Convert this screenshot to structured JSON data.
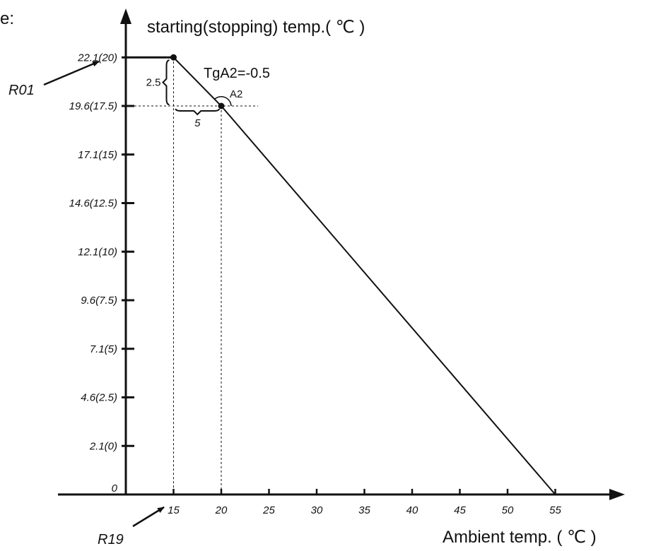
{
  "corner_text": "e:",
  "chart_data": {
    "type": "line",
    "ylabel": "starting(stopping) temp.( ℃ )",
    "xlabel": "Ambient temp. ( ℃ )",
    "x_ticks": [
      15,
      20,
      25,
      30,
      35,
      40,
      45,
      50,
      55
    ],
    "y_ticks": [
      {
        "value": 0,
        "label": "0"
      },
      {
        "value": 2.5,
        "label": "2.1(0)"
      },
      {
        "value": 5,
        "label": "4.6(2.5)"
      },
      {
        "value": 7.5,
        "label": "7.1(5)"
      },
      {
        "value": 10,
        "label": "9.6(7.5)"
      },
      {
        "value": 12.5,
        "label": "12.1(10)"
      },
      {
        "value": 15,
        "label": "14.6(12.5)"
      },
      {
        "value": 17.5,
        "label": "17.1(15)"
      },
      {
        "value": 20,
        "label": "19.6(17.5)"
      },
      {
        "value": 22.5,
        "label": "22.1(20)"
      }
    ],
    "xlim": [
      8.5,
      56
    ],
    "ylim": [
      0,
      23.5
    ],
    "series": [
      {
        "x": [
          15,
          20,
          55
        ],
        "y": [
          22.5,
          20,
          0
        ]
      }
    ],
    "points": [
      {
        "x": 15,
        "y": 22.5
      },
      {
        "x": 20,
        "y": 20
      }
    ],
    "annotations": {
      "slope": "TgA2=-0.5",
      "angle": "A2",
      "dy": "2.5",
      "dx": "5"
    },
    "markers": {
      "top": "R01",
      "bottom": "R19"
    },
    "grid": false
  }
}
